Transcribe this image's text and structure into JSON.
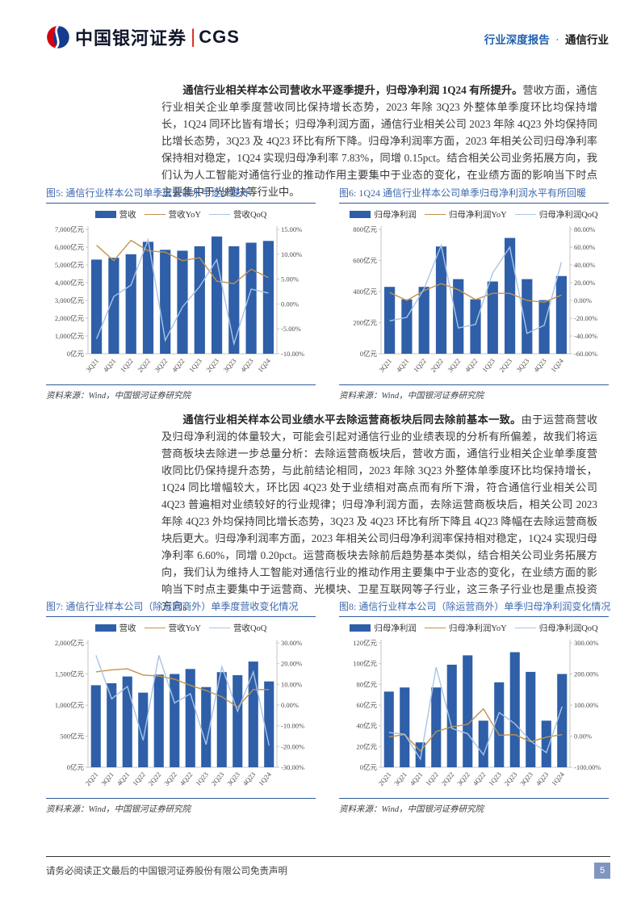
{
  "header": {
    "logo_cn": "中国银河证券",
    "logo_divider": "|",
    "logo_en": "CGS",
    "right_bold": "行业深度报告",
    "right_sep": "·",
    "right_rest": "通信行业"
  },
  "paragraphs": [
    {
      "lead": "通信行业相关样本公司营收水平逐季提升，归母净利润 1Q24 有所提升。",
      "body": "营收方面，通信行业相关企业单季度营收同比保持增长态势，2023 年除 3Q23 外整体单季度环比均保持增长，1Q24 同环比皆有增长；归母净利润方面，通信行业相关公司 2023 年除 4Q23 外均保持同比增长态势，3Q23 及 4Q23 环比有所下降。归母净利润率方面，2023 年相关公司归母净利率保持相对稳定，1Q24 实现归母净利率 7.83%，同增 0.15pct。结合相关公司业务拓展方向，我们认为人工智能对通信行业的推动作用主要集中于业态的变化，在业绩方面的影响当下时点主要集中于光模块等行业中。"
    },
    {
      "lead": "通信行业相关样本公司业绩水平去除运营商板块后同去除前基本一致。",
      "body": "由于运营商营收及归母净利润的体量较大，可能会引起对通信行业的业绩表现的分析有所偏差，故我们将运营商板块去除进一步总量分析：去除运营商板块后，营收方面，通信行业相关企业单季度营收同比仍保持提升态势，与此前结论相同，2023 年除 3Q23 外整体单季度环比均保持增长，1Q24 同比增幅较大，环比因 4Q23 处于业绩相对高点而有所下滑，符合通信行业相关公司 4Q23 普遍相对业绩较好的行业规律；归母净利润方面，去除运营商板块后，相关公司 2023 年除 4Q23 外均保持同比增长态势，3Q23 及 4Q23 环比有所下降且 4Q23 降幅在去除运营商板块后更大。归母净利润率方面，2023 年相关公司归母净利润率保持相对稳定，1Q24 实现归母净利率 6.60%，同增 0.20pct。运营商板块去除前后趋势基本类似，结合相关公司业务拓展方向，我们认为维持人工智能对通信行业的推动作用主要集中于业态的变化，在业绩方面的影响当下时点主要集中于运营商、光模块、卫星互联网等子行业，这三条子行业也是重点投资方向。"
    }
  ],
  "colors": {
    "bar": "#2e5fa8",
    "yoy": "#c2924c",
    "qoq": "#a9c3e6",
    "title_blue": "#3c68ae",
    "rule_blue": "#2f5b9d",
    "header_blue": "#1e61ae",
    "page_box": "#8096c0"
  },
  "figures": [
    {
      "title": "图5: 通信行业样本公司单季度营收水平逐步提升",
      "source": "资料来源：Wind，中国银河证券研究院",
      "chart_data": {
        "type": "bar",
        "subtype": "combo-bar-line",
        "categories": [
          "3Q21",
          "4Q21",
          "1Q22",
          "2Q22",
          "3Q22",
          "4Q22",
          "1Q23",
          "2Q23",
          "3Q23",
          "4Q23",
          "1Q24"
        ],
        "series": [
          {
            "name": "营收",
            "type": "bar",
            "axis": "left",
            "values": [
              5300,
              5400,
              5600,
              6300,
              5850,
              5800,
              6050,
              6600,
              6050,
              6250,
              6350
            ]
          },
          {
            "name": "营收YoY",
            "type": "line",
            "axis": "right",
            "values": [
              11.8,
              8.7,
              12.8,
              10.7,
              10.4,
              8.7,
              9.3,
              4.6,
              4.1,
              7.0,
              5.3
            ]
          },
          {
            "name": "营收QoQ",
            "type": "line",
            "axis": "right",
            "values": [
              -7.0,
              1.5,
              3.8,
              12.9,
              -7.3,
              -0.6,
              3.5,
              8.9,
              -8.0,
              3.0,
              2.2
            ]
          }
        ],
        "left_axis": {
          "min": 0,
          "max": 7000,
          "step": 1000,
          "suffix": "亿元",
          "thousands": true
        },
        "right_axis": {
          "min": -10,
          "max": 15,
          "step": 5,
          "suffix": "%",
          "decimals": 2
        },
        "grid": false,
        "legend_position": "top"
      }
    },
    {
      "title": "图6: 1Q24 通信行业样本公司单季归母净利润水平有所回暖",
      "source": "资料来源：Wind，中国银河证券研究院",
      "chart_data": {
        "type": "bar",
        "subtype": "combo-bar-line",
        "categories": [
          "3Q21",
          "4Q21",
          "1Q22",
          "2Q22",
          "3Q22",
          "4Q22",
          "1Q23",
          "2Q23",
          "3Q23",
          "4Q23",
          "1Q24"
        ],
        "series": [
          {
            "name": "归母净利润",
            "type": "bar",
            "axis": "left",
            "values": [
              430,
              350,
              430,
              690,
              480,
              350,
              465,
              745,
              480,
              345,
              500
            ]
          },
          {
            "name": "归母净利润YoY",
            "type": "line",
            "axis": "right",
            "values": [
              9,
              0,
              11,
              19,
              12,
              1,
              8,
              8,
              0,
              -2,
              6
            ]
          },
          {
            "name": "归母净利润QoQ",
            "type": "line",
            "axis": "right",
            "values": [
              -23,
              -19,
              13,
              62,
              -31,
              -27,
              31,
              60,
              -37,
              -28,
              43
            ]
          }
        ],
        "left_axis": {
          "min": 0,
          "max": 800,
          "step": 200,
          "suffix": "亿元",
          "thousands": false
        },
        "right_axis": {
          "min": -60,
          "max": 80,
          "step": 20,
          "suffix": "%",
          "decimals": 2
        },
        "grid": false,
        "legend_position": "top"
      }
    },
    {
      "title": "图7: 通信行业样本公司（除运营商外）单季度营收变化情况",
      "source": "资料来源：Wind，中国银河证券研究院",
      "chart_data": {
        "type": "bar",
        "subtype": "combo-bar-line",
        "categories": [
          "2Q21",
          "3Q21",
          "4Q21",
          "1Q22",
          "2Q22",
          "3Q22",
          "4Q22",
          "1Q23",
          "2Q23",
          "3Q23",
          "4Q23",
          "1Q24"
        ],
        "series": [
          {
            "name": "营收",
            "type": "bar",
            "axis": "left",
            "values": [
              1320,
              1350,
              1460,
              1200,
              1490,
              1500,
              1580,
              1290,
              1530,
              1480,
              1700,
              1380
            ]
          },
          {
            "name": "营收YoY",
            "type": "line",
            "axis": "right",
            "values": [
              16,
              17,
              17.5,
              14.5,
              14,
              12.5,
              9.5,
              7,
              4,
              -1,
              7.5,
              7.5
            ]
          },
          {
            "name": "营收QoQ",
            "type": "line",
            "axis": "right",
            "values": [
              24,
              3,
              9,
              -17,
              24,
              1,
              5.5,
              -19,
              18.5,
              -3,
              16,
              -19.5
            ]
          }
        ],
        "left_axis": {
          "min": 0,
          "max": 2000,
          "step": 500,
          "suffix": "亿元",
          "thousands": true
        },
        "right_axis": {
          "min": -30,
          "max": 30,
          "step": 10,
          "suffix": "%",
          "decimals": 2
        },
        "grid": false,
        "legend_position": "top"
      }
    },
    {
      "title": "图8: 通信行业样本公司（除运营商外）单季归母净利润变化情况",
      "source": "资料来源：Wind，中国银河证券研究院",
      "chart_data": {
        "type": "bar",
        "subtype": "combo-bar-line",
        "categories": [
          "2Q21",
          "3Q21",
          "4Q21",
          "1Q22",
          "2Q22",
          "3Q22",
          "4Q22",
          "1Q23",
          "2Q23",
          "3Q23",
          "4Q23",
          "1Q24"
        ],
        "series": [
          {
            "name": "归母净利润",
            "type": "bar",
            "axis": "left",
            "values": [
              73,
              77,
              24,
              77,
              99,
              108,
              45,
              82,
              111,
              92,
              45,
              90
            ]
          },
          {
            "name": "归母净利润YoY",
            "type": "line",
            "axis": "right",
            "values": [
              -2,
              5,
              -48,
              15,
              30,
              38,
              88,
              3,
              5,
              -18,
              -3,
              5
            ]
          },
          {
            "name": "归母净利润QoQ",
            "type": "line",
            "axis": "right",
            "values": [
              12,
              6,
              -74,
              222,
              25,
              8,
              -60,
              76,
              40,
              -15,
              -53,
              95
            ]
          }
        ],
        "left_axis": {
          "min": 0,
          "max": 120,
          "step": 20,
          "suffix": "亿元",
          "thousands": false
        },
        "right_axis": {
          "min": -100,
          "max": 300,
          "step": 100,
          "suffix": "%",
          "decimals": 2
        },
        "grid": false,
        "legend_position": "top"
      }
    }
  ],
  "footer": {
    "disclaimer": "请务必阅读正文最后的中国银河证券股份有限公司免责声明",
    "page_number": "5"
  }
}
